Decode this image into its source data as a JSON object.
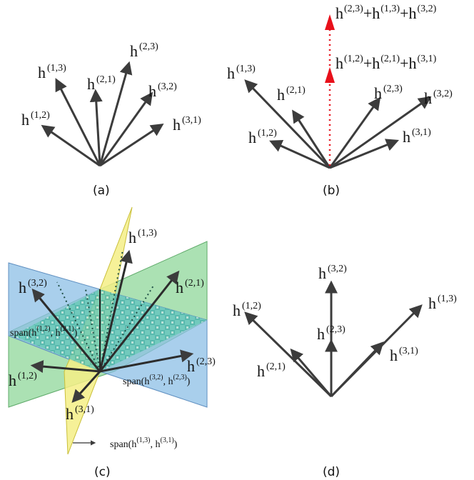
{
  "panel_a": {
    "caption": "(a)",
    "labels": {
      "h13": {
        "base": "h",
        "sup": "(1,3)"
      },
      "h21": {
        "base": "h",
        "sup": "(2,1)"
      },
      "h23": {
        "base": "h",
        "sup": "(2,3)"
      },
      "h32": {
        "base": "h",
        "sup": "(3,2)"
      },
      "h12": {
        "base": "h",
        "sup": "(1,2)"
      },
      "h31": {
        "base": "h",
        "sup": "(3,1)"
      }
    }
  },
  "panel_b": {
    "caption": "(b)",
    "sum_top": {
      "t1": "h",
      "s1": "(2,3)",
      "op1": "+h",
      "s2": "(1,3)",
      "op2": "+h",
      "s3": "(3,2)"
    },
    "sum_mid": {
      "t1": "h",
      "s1": "(1,2)",
      "op1": "+h",
      "s2": "(2,1)",
      "op2": "+h",
      "s3": "(3,1)"
    },
    "labels": {
      "h13": {
        "base": "h",
        "sup": "(1,3)"
      },
      "h21": {
        "base": "h",
        "sup": "(2,1)"
      },
      "h12": {
        "base": "h",
        "sup": "(1,2)"
      },
      "h23": {
        "base": "h",
        "sup": "(2,3)"
      },
      "h32": {
        "base": "h",
        "sup": "(3,2)"
      },
      "h31": {
        "base": "h",
        "sup": "(3,1)"
      }
    },
    "sum_color": "#e8101a"
  },
  "panel_c": {
    "caption": "(c)",
    "labels": {
      "h13": {
        "base": "h",
        "sup": "(1,3)"
      },
      "h32": {
        "base": "h",
        "sup": "(3,2)"
      },
      "h21": {
        "base": "h",
        "sup": "(2,1)"
      },
      "h23": {
        "base": "h",
        "sup": "(2,3)"
      },
      "h12": {
        "base": "h",
        "sup": "(1,2)"
      },
      "h31": {
        "base": "h",
        "sup": "(3,1)"
      }
    },
    "span_blue_left": {
      "pre": "span(h",
      "s1": "(1,2)",
      "mid": ", h",
      "s2": "(2,1)",
      "post": ")"
    },
    "span_blue_right": {
      "pre": "span(h",
      "s1": "(3,2)",
      "mid": ", h",
      "s2": "(2,3)",
      "post": ")"
    },
    "span_yellow": {
      "pre": "span(h",
      "s1": "(1,3)",
      "mid": ", h",
      "s2": "(3,1)",
      "post": ")"
    },
    "plane_colors": {
      "yellow": "#f4ee86",
      "green": "#8fd79a",
      "blue": "#8cbfe6"
    }
  },
  "panel_d": {
    "caption": "(d)",
    "labels": {
      "h32": {
        "base": "h",
        "sup": "(3,2)"
      },
      "h12": {
        "base": "h",
        "sup": "(1,2)"
      },
      "h13": {
        "base": "h",
        "sup": "(1,3)"
      },
      "h23": {
        "base": "h",
        "sup": "(2,3)"
      },
      "h21": {
        "base": "h",
        "sup": "(2,1)"
      },
      "h31": {
        "base": "h",
        "sup": "(3,1)"
      }
    }
  },
  "arrow_color": "#3c3c3c"
}
